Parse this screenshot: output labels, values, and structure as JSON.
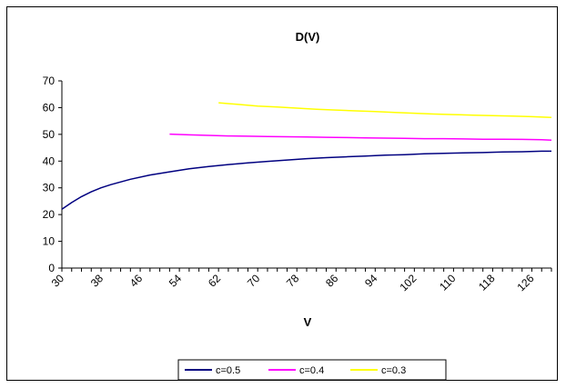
{
  "chart_data": {
    "type": "line",
    "title": "D(V)",
    "xlabel": "V",
    "ylabel": "",
    "ylim": [
      0,
      70
    ],
    "yticks": [
      0,
      10,
      20,
      30,
      40,
      50,
      60,
      70
    ],
    "xlim": [
      30,
      130
    ],
    "xticks": [
      30,
      38,
      46,
      54,
      62,
      70,
      78,
      86,
      94,
      102,
      110,
      118,
      126
    ],
    "grid": false,
    "legend": "bottom",
    "series": [
      {
        "name": "c=0.5",
        "color": "#000080",
        "x": [
          30,
          32,
          34,
          36,
          38,
          40,
          44,
          48,
          52,
          56,
          60,
          64,
          68,
          72,
          76,
          80,
          84,
          88,
          92,
          96,
          100,
          104,
          108,
          112,
          116,
          120,
          124,
          128,
          130
        ],
        "y": [
          22,
          24.5,
          26.7,
          28.5,
          30,
          31.2,
          33.2,
          34.8,
          36.0,
          37.1,
          38.0,
          38.7,
          39.3,
          39.9,
          40.4,
          40.9,
          41.3,
          41.6,
          41.9,
          42.2,
          42.4,
          42.7,
          42.9,
          43.1,
          43.2,
          43.4,
          43.5,
          43.7,
          43.7
        ]
      },
      {
        "name": "c=0.4",
        "color": "#ff00ff",
        "x": [
          52,
          56,
          60,
          64,
          68,
          72,
          76,
          80,
          84,
          88,
          92,
          96,
          100,
          104,
          108,
          112,
          116,
          120,
          124,
          128,
          130
        ],
        "y": [
          50.1,
          49.8,
          49.6,
          49.4,
          49.3,
          49.2,
          49.1,
          49.0,
          48.9,
          48.8,
          48.7,
          48.6,
          48.5,
          48.4,
          48.4,
          48.3,
          48.2,
          48.2,
          48.1,
          48.0,
          47.8
        ]
      },
      {
        "name": "c=0.3",
        "color": "#ffff00",
        "x": [
          62,
          66,
          70,
          74,
          78,
          82,
          86,
          90,
          94,
          98,
          102,
          106,
          110,
          114,
          118,
          122,
          126,
          130
        ],
        "y": [
          61.8,
          61.2,
          60.6,
          60.2,
          59.8,
          59.4,
          59.1,
          58.8,
          58.5,
          58.2,
          57.9,
          57.6,
          57.4,
          57.2,
          57.0,
          56.8,
          56.6,
          56.3
        ]
      }
    ]
  }
}
